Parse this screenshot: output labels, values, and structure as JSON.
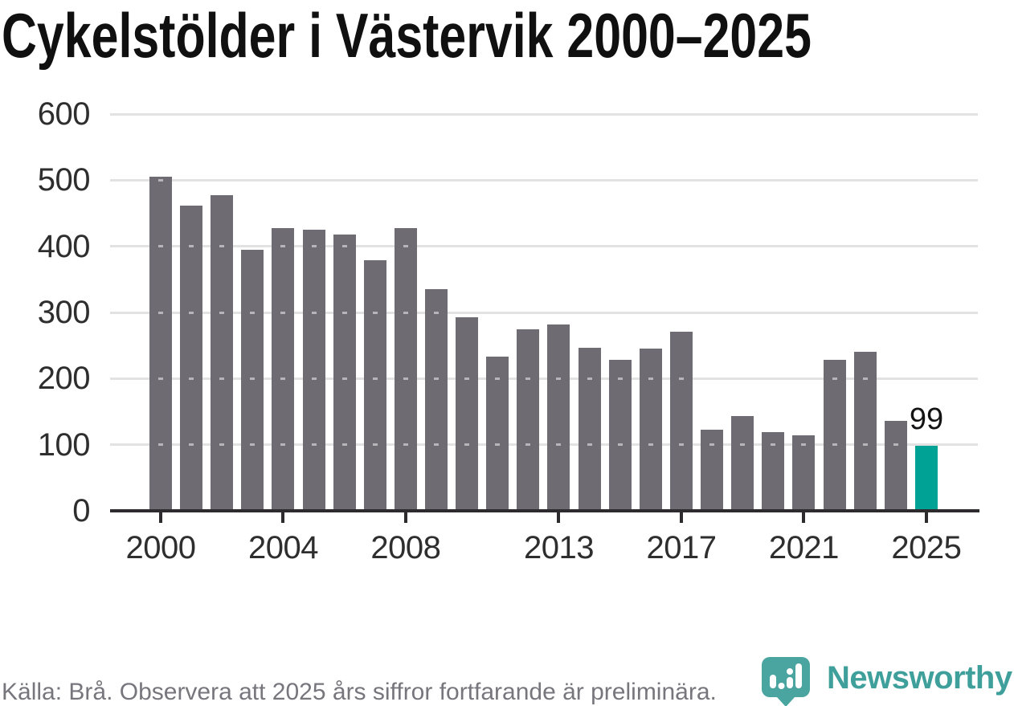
{
  "title": "Cykelstölder i Västervik 2000–2025",
  "footer": {
    "source_note": "Källa: Brå. Observera att 2025 års siffror fortfarande är preliminära.",
    "brand": "Newsworthy"
  },
  "colors": {
    "bar": "#6e6b72",
    "highlight": "#00a296",
    "grid": "#e2e2e2",
    "axis": "#2d2b2e",
    "title_text": "#101010",
    "tick_text": "#2e2e2e",
    "footer_text": "#78767d",
    "brand_teal": "#3f9f9a",
    "logo_teal": "#4aa5a0"
  },
  "chart_data": {
    "type": "bar",
    "title": "Cykelstölder i Västervik 2000–2025",
    "x": [
      2000,
      2001,
      2002,
      2003,
      2004,
      2005,
      2006,
      2007,
      2008,
      2009,
      2010,
      2011,
      2012,
      2013,
      2014,
      2015,
      2016,
      2017,
      2018,
      2019,
      2020,
      2021,
      2022,
      2023,
      2024,
      2025
    ],
    "values": [
      505,
      462,
      477,
      395,
      428,
      425,
      418,
      379,
      427,
      335,
      293,
      233,
      275,
      282,
      247,
      229,
      246,
      271,
      123,
      143,
      119,
      114,
      229,
      240,
      136,
      99
    ],
    "highlight_x": 2025,
    "annotation": {
      "x": 2025,
      "label": "99"
    },
    "ylim": [
      0,
      600
    ],
    "yticks": [
      0,
      100,
      200,
      300,
      400,
      500,
      600
    ],
    "xticks": [
      2000,
      2004,
      2008,
      2013,
      2017,
      2021,
      2025
    ],
    "grid": true,
    "legend": "none"
  }
}
